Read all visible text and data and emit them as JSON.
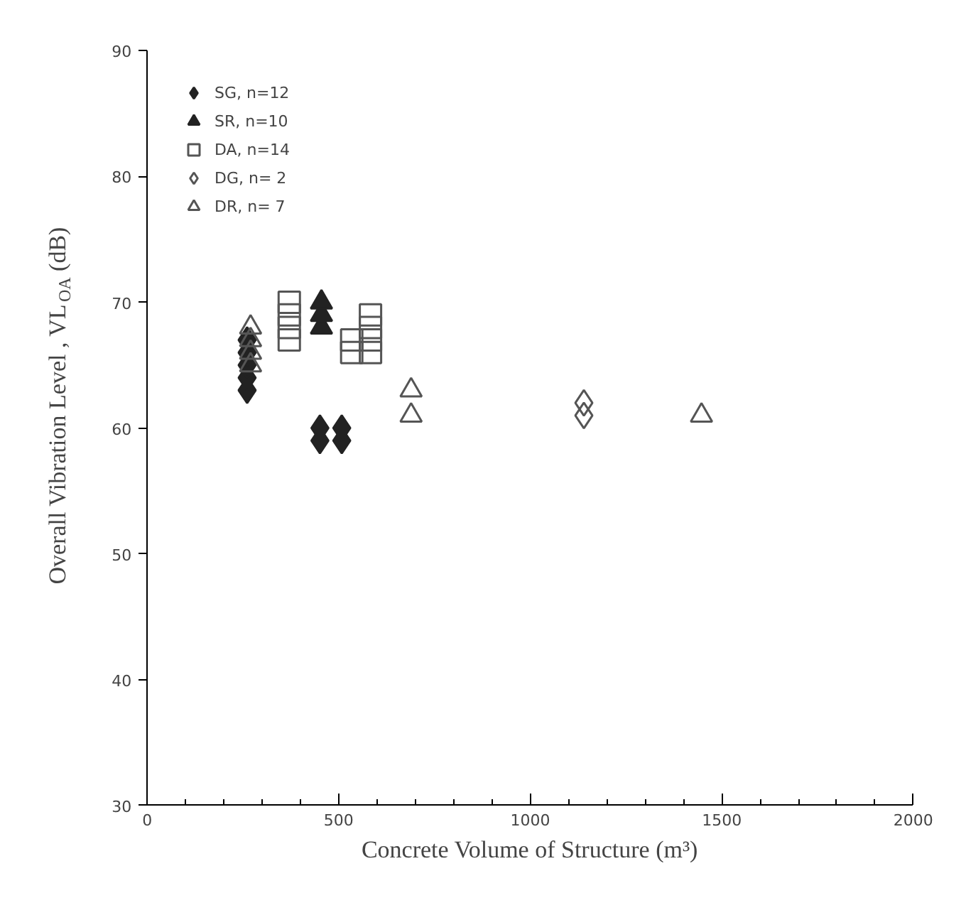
{
  "chart_data": {
    "type": "scatter",
    "xlabel": "Concrete Volume of Structure (m³)",
    "ylabel": "Overall Vibration Level , VL$_{OA}$ (dB)",
    "xlim": [
      0,
      2000
    ],
    "xticks": [
      0,
      500,
      1000,
      1500,
      2000
    ],
    "ylim": [
      30,
      90
    ],
    "yticks": [
      30,
      40,
      50,
      60,
      70,
      80,
      90
    ],
    "grid": false,
    "legend": "top left",
    "series": [
      {
        "name": "SG, n=12",
        "color": "#222222",
        "marker": "diamond",
        "x": [
          261,
          261,
          261,
          261,
          261,
          451,
          451,
          508,
          508
        ],
        "values": [
          63,
          64,
          65,
          66,
          67,
          59,
          60,
          59,
          60
        ]
      },
      {
        "name": "SR, n=10",
        "color": "#222222",
        "marker": "triangle",
        "x": [
          455,
          455,
          455
        ],
        "values": [
          68,
          69,
          70
        ]
      },
      {
        "name": "DA, n=14",
        "color": "#555555",
        "marker": "square",
        "x": [
          371,
          371,
          371,
          371,
          534,
          534,
          583,
          583,
          583,
          583
        ],
        "values": [
          67,
          68,
          69,
          70,
          66,
          67,
          66,
          67,
          68,
          69
        ]
      },
      {
        "name": "DG, n= 2",
        "color": "#555555",
        "marker": "diamond",
        "x": [
          1140,
          1140
        ],
        "values": [
          61,
          62
        ]
      },
      {
        "name": "DR, n= 7",
        "color": "#555555",
        "marker": "triangle",
        "x": [
          270,
          270,
          270,
          270,
          689,
          689,
          1447
        ],
        "values": [
          65,
          66,
          67,
          68,
          61,
          63,
          61
        ]
      }
    ]
  }
}
